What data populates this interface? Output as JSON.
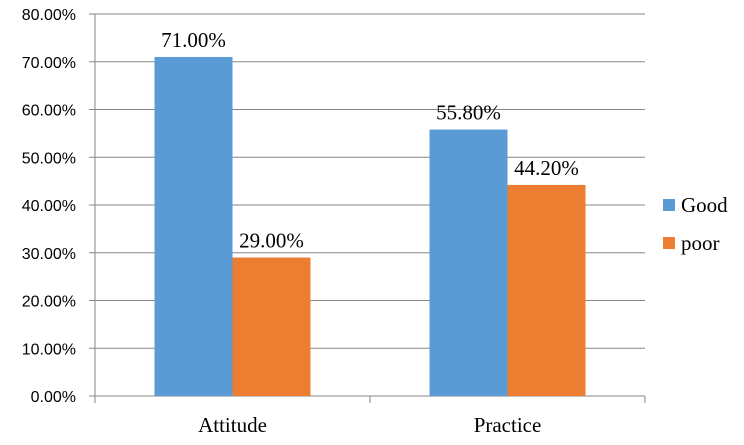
{
  "chart_data": {
    "type": "bar",
    "title": "",
    "xlabel": "",
    "ylabel": "",
    "categories": [
      "Attitude",
      "Practice"
    ],
    "series": [
      {
        "name": "Good",
        "values": [
          71.0,
          55.8
        ],
        "color": "#5B9BD5",
        "labels": [
          "71.00%",
          "55.80%"
        ]
      },
      {
        "name": "poor",
        "values": [
          29.0,
          44.2
        ],
        "color": "#ED7D31",
        "labels": [
          "29.00%",
          "44.20%"
        ]
      }
    ],
    "ylim": [
      0,
      80
    ],
    "yticks": [
      0,
      10,
      20,
      30,
      40,
      50,
      60,
      70,
      80
    ],
    "ytick_labels": [
      "0.00%",
      "10.00%",
      "20.00%",
      "30.00%",
      "40.00%",
      "50.00%",
      "60.00%",
      "70.00%",
      "80.00%"
    ],
    "grid": true,
    "legend_position": "right"
  }
}
